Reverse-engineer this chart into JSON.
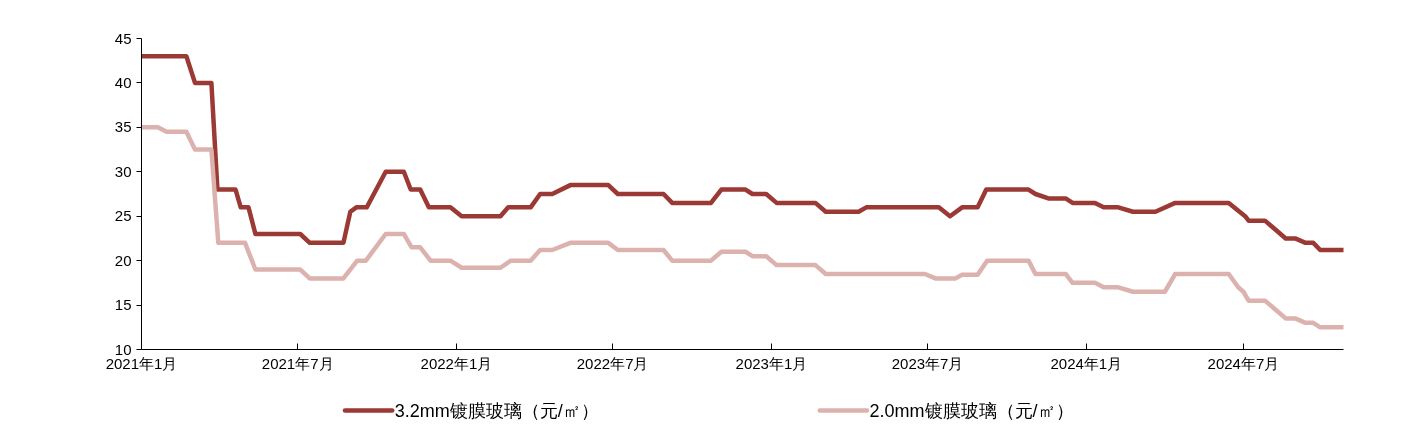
{
  "chart_data": {
    "type": "line",
    "xlim": [
      "2021-01-01",
      "2024-10-25"
    ],
    "ylim": [
      10,
      45
    ],
    "yticks": [
      10,
      15,
      20,
      25,
      30,
      35,
      40,
      45
    ],
    "xticks": [
      {
        "value": "2021-01-01",
        "label": "2021年1月"
      },
      {
        "value": "2021-07-01",
        "label": "2021年7月"
      },
      {
        "value": "2022-01-01",
        "label": "2022年1月"
      },
      {
        "value": "2022-07-01",
        "label": "2022年7月"
      },
      {
        "value": "2023-01-01",
        "label": "2023年1月"
      },
      {
        "value": "2023-07-01",
        "label": "2023年7月"
      },
      {
        "value": "2024-01-01",
        "label": "2024年1月"
      },
      {
        "value": "2024-07-01",
        "label": "2024年7月"
      }
    ],
    "grid": false,
    "legend": "bottom",
    "marker": "none",
    "line_style": "solid",
    "series": [
      {
        "name": "3.2mm镀膜玻璃（元/㎡）",
        "color": "#9b3a35",
        "x": [
          "2021-01-01",
          "2021-02-22",
          "2021-03-04",
          "2021-03-23",
          "2021-03-30",
          "2021-04-20",
          "2021-04-26",
          "2021-05-05",
          "2021-05-13",
          "2021-07-04",
          "2021-07-15",
          "2021-08-23",
          "2021-08-31",
          "2021-09-07",
          "2021-09-19",
          "2021-10-11",
          "2021-11-01",
          "2021-11-09",
          "2021-11-20",
          "2021-11-30",
          "2021-12-25",
          "2022-01-07",
          "2022-02-21",
          "2022-03-02",
          "2022-03-28",
          "2022-04-08",
          "2022-04-22",
          "2022-05-13",
          "2022-06-26",
          "2022-07-07",
          "2022-08-29",
          "2022-09-08",
          "2022-10-23",
          "2022-11-04",
          "2022-12-02",
          "2022-12-10",
          "2022-12-26",
          "2023-01-07",
          "2023-02-21",
          "2023-03-05",
          "2023-04-12",
          "2023-04-21",
          "2023-07-14",
          "2023-07-27",
          "2023-08-10",
          "2023-08-28",
          "2023-09-07",
          "2023-10-26",
          "2023-11-03",
          "2023-11-18",
          "2023-12-08",
          "2023-12-16",
          "2024-01-11",
          "2024-01-21",
          "2024-02-07",
          "2024-02-24",
          "2024-03-21",
          "2024-04-13",
          "2024-06-14",
          "2024-07-03",
          "2024-07-07",
          "2024-07-26",
          "2024-08-07",
          "2024-08-19",
          "2024-08-30",
          "2024-09-11",
          "2024-09-20",
          "2024-09-28",
          "2024-10-25"
        ],
        "values": [
          43,
          43,
          40,
          40,
          28,
          28,
          26,
          26,
          23,
          23,
          22,
          22,
          25.5,
          26,
          26,
          30,
          30,
          28,
          28,
          26,
          26,
          25,
          25,
          26,
          26,
          27.5,
          27.5,
          28.5,
          28.5,
          27.5,
          27.5,
          26.5,
          26.5,
          28,
          28,
          27.5,
          27.5,
          26.5,
          26.5,
          25.5,
          25.5,
          26,
          26,
          25,
          26,
          26,
          28,
          28,
          27.5,
          27,
          27,
          26.5,
          26.5,
          26,
          26,
          25.5,
          25.5,
          26.5,
          26.5,
          25,
          24.5,
          24.5,
          23.5,
          22.5,
          22.5,
          22,
          22,
          21.2,
          21.2
        ]
      },
      {
        "name": "2.0mm镀膜玻璃（元/㎡）",
        "color": "#dcb2af",
        "x": [
          "2021-01-01",
          "2021-01-20",
          "2021-01-30",
          "2021-02-22",
          "2021-03-04",
          "2021-03-23",
          "2021-03-31",
          "2021-05-01",
          "2021-05-13",
          "2021-07-04",
          "2021-07-15",
          "2021-08-23",
          "2021-09-08",
          "2021-09-18",
          "2021-10-11",
          "2021-11-01",
          "2021-11-10",
          "2021-11-20",
          "2021-12-02",
          "2021-12-25",
          "2022-01-07",
          "2022-02-21",
          "2022-03-05",
          "2022-03-28",
          "2022-04-08",
          "2022-04-22",
          "2022-05-13",
          "2022-06-26",
          "2022-07-07",
          "2022-08-29",
          "2022-09-08",
          "2022-10-23",
          "2022-11-04",
          "2022-12-02",
          "2022-12-10",
          "2022-12-26",
          "2023-01-07",
          "2023-02-21",
          "2023-03-05",
          "2023-06-28",
          "2023-07-10",
          "2023-08-02",
          "2023-08-10",
          "2023-08-28",
          "2023-09-08",
          "2023-10-26",
          "2023-11-03",
          "2023-12-08",
          "2023-12-16",
          "2024-01-11",
          "2024-01-21",
          "2024-02-07",
          "2024-02-24",
          "2024-04-01",
          "2024-04-13",
          "2024-06-14",
          "2024-06-25",
          "2024-07-01",
          "2024-07-07",
          "2024-07-26",
          "2024-08-07",
          "2024-08-19",
          "2024-08-30",
          "2024-09-11",
          "2024-09-20",
          "2024-09-28",
          "2024-10-25"
        ],
        "values": [
          35,
          35,
          34.5,
          34.5,
          32.5,
          32.5,
          22,
          22,
          19,
          19,
          18,
          18,
          20,
          20,
          23,
          23,
          21.5,
          21.5,
          20,
          20,
          19.2,
          19.2,
          20,
          20,
          21.2,
          21.2,
          22,
          22,
          21.2,
          21.2,
          20,
          20,
          21,
          21,
          20.5,
          20.5,
          19.5,
          19.5,
          18.5,
          18.5,
          18,
          18,
          18.4,
          18.4,
          20,
          20,
          18.5,
          18.5,
          17.5,
          17.5,
          17,
          17,
          16.5,
          16.5,
          18.5,
          18.5,
          17,
          16.5,
          15.5,
          15.5,
          14.5,
          13.5,
          13.5,
          13,
          13,
          12.5,
          12.5
        ]
      }
    ]
  }
}
